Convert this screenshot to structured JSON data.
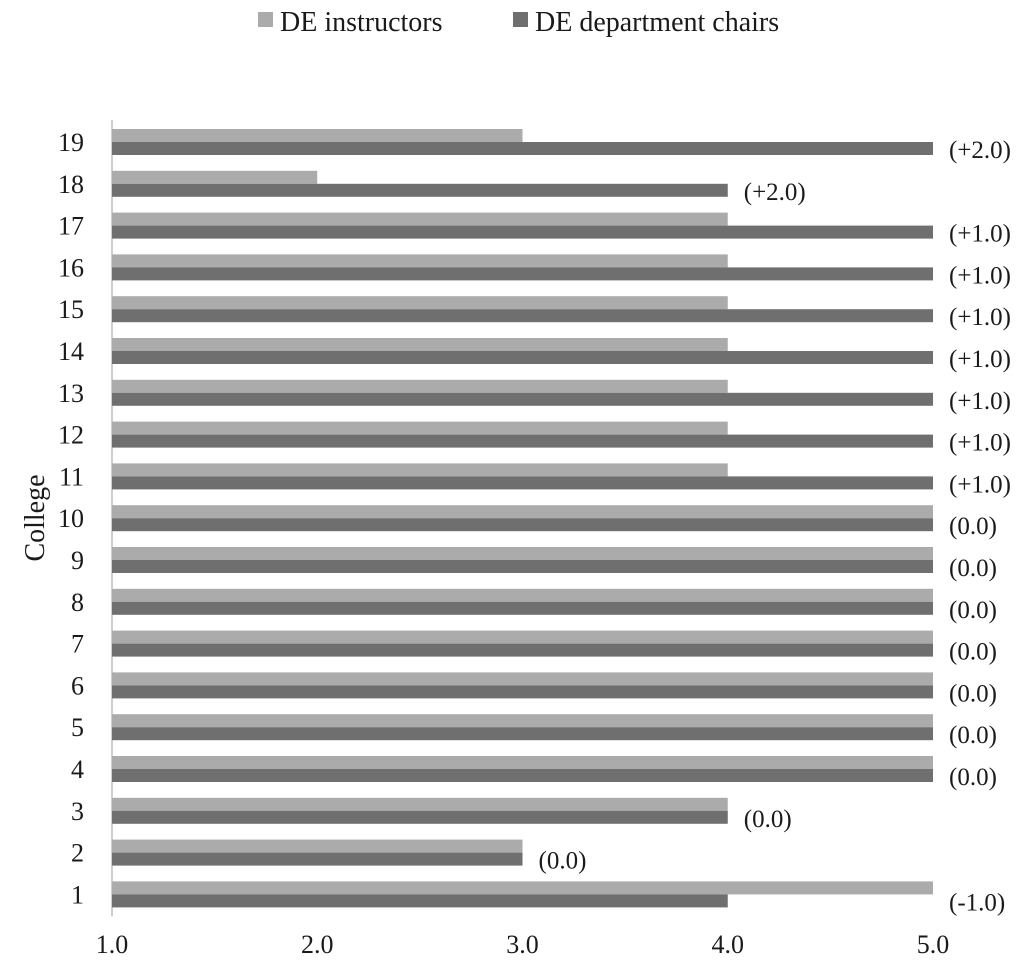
{
  "chart_data": {
    "type": "bar",
    "orientation": "horizontal",
    "categories": [
      "1",
      "2",
      "3",
      "4",
      "5",
      "6",
      "7",
      "8",
      "9",
      "10",
      "11",
      "12",
      "13",
      "14",
      "15",
      "16",
      "17",
      "18",
      "19"
    ],
    "series": [
      {
        "name": "DE instructors",
        "color": "#ababab",
        "values": [
          5.0,
          3.0,
          4.0,
          5.0,
          5.0,
          5.0,
          5.0,
          5.0,
          5.0,
          5.0,
          4.0,
          4.0,
          4.0,
          4.0,
          4.0,
          4.0,
          4.0,
          2.0,
          3.0
        ]
      },
      {
        "name": "DE department chairs",
        "color": "#6f6f6f",
        "values": [
          4.0,
          3.0,
          4.0,
          5.0,
          5.0,
          5.0,
          5.0,
          5.0,
          5.0,
          5.0,
          5.0,
          5.0,
          5.0,
          5.0,
          5.0,
          5.0,
          5.0,
          4.0,
          5.0
        ]
      }
    ],
    "bar_labels": [
      "(-1.0)",
      "(0.0)",
      "(0.0)",
      "(0.0)",
      "(0.0)",
      "(0.0)",
      "(0.0)",
      "(0.0)",
      "(0.0)",
      "(0.0)",
      "(+1.0)",
      "(+1.0)",
      "(+1.0)",
      "(+1.0)",
      "(+1.0)",
      "(+1.0)",
      "(+1.0)",
      "(+2.0)",
      "(+2.0)"
    ],
    "xlim": [
      1.0,
      5.0
    ],
    "xticks": [
      "1.0",
      "2.0",
      "3.0",
      "4.0",
      "5.0"
    ],
    "ylabel": "College",
    "xlabel": "",
    "legend_position": "top",
    "grid": false
  }
}
